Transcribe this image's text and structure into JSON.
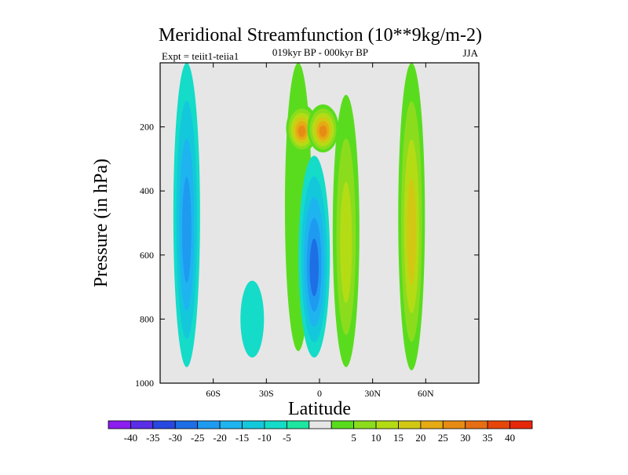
{
  "chart_data": {
    "type": "filled-contour",
    "title": "Meridional Streamfunction (10**9kg/m-2)",
    "subtitle": "019kyr BP - 000kyr BP",
    "season": "JJA",
    "experiment": "Expt = teiit1-teiia1",
    "xlabel": "Latitude",
    "ylabel": "Pressure (in hPa)",
    "xlim": [
      -90,
      90
    ],
    "ylim": [
      1000,
      0
    ],
    "x_ticks": [
      {
        "value": -60,
        "label": "60S"
      },
      {
        "value": -30,
        "label": "30S"
      },
      {
        "value": 0,
        "label": "0"
      },
      {
        "value": 30,
        "label": "30N"
      },
      {
        "value": 60,
        "label": "60N"
      }
    ],
    "y_ticks": [
      {
        "value": 200,
        "label": "200"
      },
      {
        "value": 400,
        "label": "400"
      },
      {
        "value": 600,
        "label": "600"
      },
      {
        "value": 800,
        "label": "800"
      },
      {
        "value": 1000,
        "label": "1000"
      }
    ],
    "colorbar": {
      "labels": [
        "-40",
        "-35",
        "-30",
        "-25",
        "-20",
        "-15",
        "-10",
        "-5",
        "5",
        "10",
        "15",
        "20",
        "25",
        "30",
        "35",
        "40"
      ],
      "colors": [
        "#8c1cf0",
        "#5a2ee6",
        "#2848e0",
        "#1e6ee6",
        "#1e9bf0",
        "#1eb4f0",
        "#14c8dc",
        "#14dcc8",
        "#1ee6a0",
        "#e6e6e6",
        "#5adc1e",
        "#8cdc1e",
        "#b4dc14",
        "#d2c814",
        "#e6aa14",
        "#e68c14",
        "#e66e14",
        "#e6460a",
        "#e6280a"
      ]
    },
    "anomalies": [
      {
        "lat": -75,
        "p_top": 0,
        "p_bottom": 950,
        "value": -20,
        "colors": [
          "#14dcc8",
          "#14c8dc",
          "#1eb4f0",
          "#1e9bf0"
        ]
      },
      {
        "lat": -38,
        "p_top": 680,
        "p_bottom": 920,
        "value": -5,
        "colors": [
          "#14dcc8"
        ]
      },
      {
        "lat": -12,
        "p_top": 0,
        "p_bottom": 900,
        "value": 5,
        "colors": [
          "#5adc1e"
        ]
      },
      {
        "lat": -10,
        "p_top": 130,
        "p_bottom": 280,
        "value": 30,
        "colors": [
          "#5adc1e",
          "#8cdc1e",
          "#b4dc14",
          "#d2c814",
          "#e6aa14",
          "#e68c14"
        ]
      },
      {
        "lat": 2,
        "p_top": 130,
        "p_bottom": 280,
        "value": 30,
        "colors": [
          "#5adc1e",
          "#8cdc1e",
          "#b4dc14",
          "#d2c814",
          "#e6aa14",
          "#e68c14"
        ]
      },
      {
        "lat": -3,
        "p_top": 290,
        "p_bottom": 920,
        "value": -25,
        "colors": [
          "#14dcc8",
          "#14c8dc",
          "#1eb4f0",
          "#1e9bf0",
          "#1e6ee6"
        ]
      },
      {
        "lat": 15,
        "p_top": 100,
        "p_bottom": 950,
        "value": 15,
        "colors": [
          "#5adc1e",
          "#8cdc1e",
          "#b4dc14"
        ]
      },
      {
        "lat": 52,
        "p_top": 0,
        "p_bottom": 960,
        "value": 25,
        "colors": [
          "#5adc1e",
          "#8cdc1e",
          "#b4dc14",
          "#d2c814"
        ]
      }
    ]
  }
}
